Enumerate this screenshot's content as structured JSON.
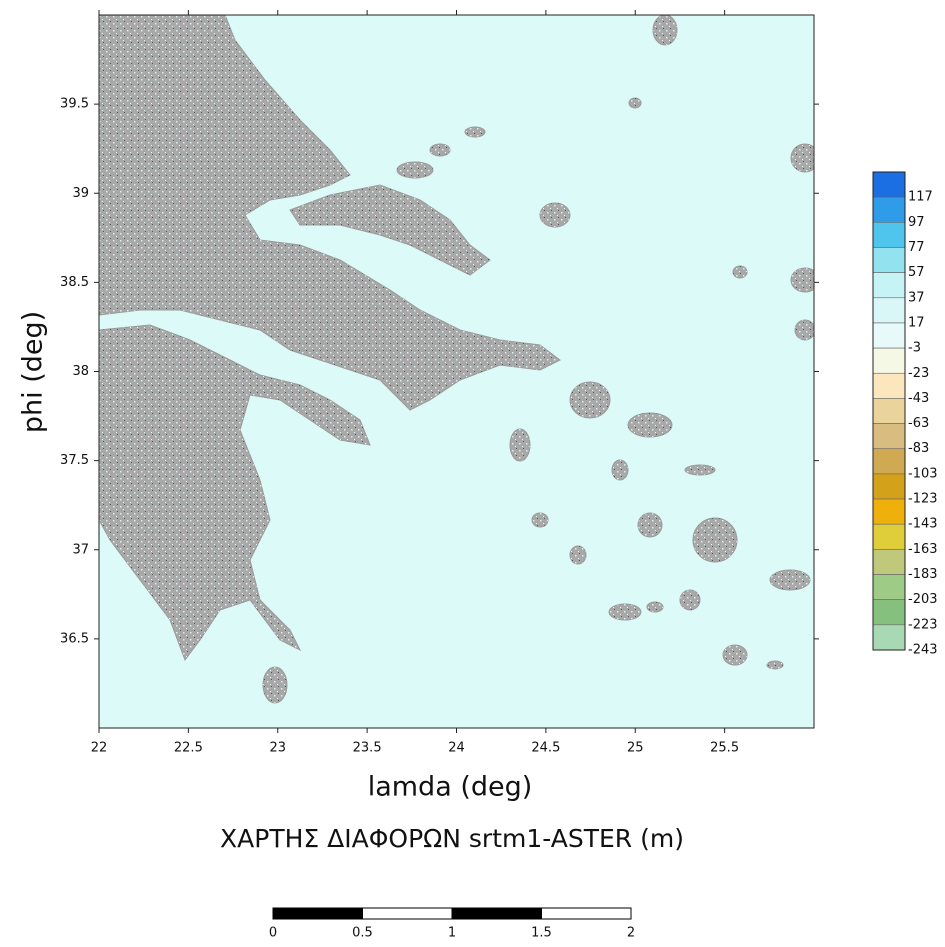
{
  "map": {
    "title": "ΧΑΡΤΗΣ ΔΙΑΦΟΡΩΝ srtm1-ASTER (m)",
    "x_label": "lamda (deg)",
    "y_label": "phi (deg)",
    "xlim": [
      22,
      26
    ],
    "ylim": [
      36,
      40
    ],
    "xticks": [
      22,
      22.5,
      23,
      23.5,
      24,
      24.5,
      25,
      25.5
    ],
    "yticks": [
      36.5,
      37,
      37.5,
      38,
      38.5,
      39,
      39.5
    ],
    "sea_color": "#dcfaf8",
    "land_color": "#a8a8a8",
    "colorbar": {
      "levels": [
        117,
        97,
        77,
        57,
        37,
        17,
        -3,
        -23,
        -43,
        -63,
        -83,
        -103,
        -123,
        -143,
        -163,
        -183,
        -203,
        -223,
        -243
      ],
      "colors": [
        "#1c6fe2",
        "#2f9ce9",
        "#4fc4ec",
        "#93e2ef",
        "#c6f3f5",
        "#daf7f7",
        "#e7f9f9",
        "#f6f8e6",
        "#fbe6bd",
        "#ead49c",
        "#d9bd80",
        "#cfaa52",
        "#d4a21a",
        "#efb00c",
        "#e0cd3a",
        "#c0c87c",
        "#9ecb86",
        "#86c07e",
        "#a9d9b4"
      ]
    },
    "scale_bar": {
      "ticks": [
        0,
        0.5,
        1,
        1.5,
        2
      ]
    }
  }
}
